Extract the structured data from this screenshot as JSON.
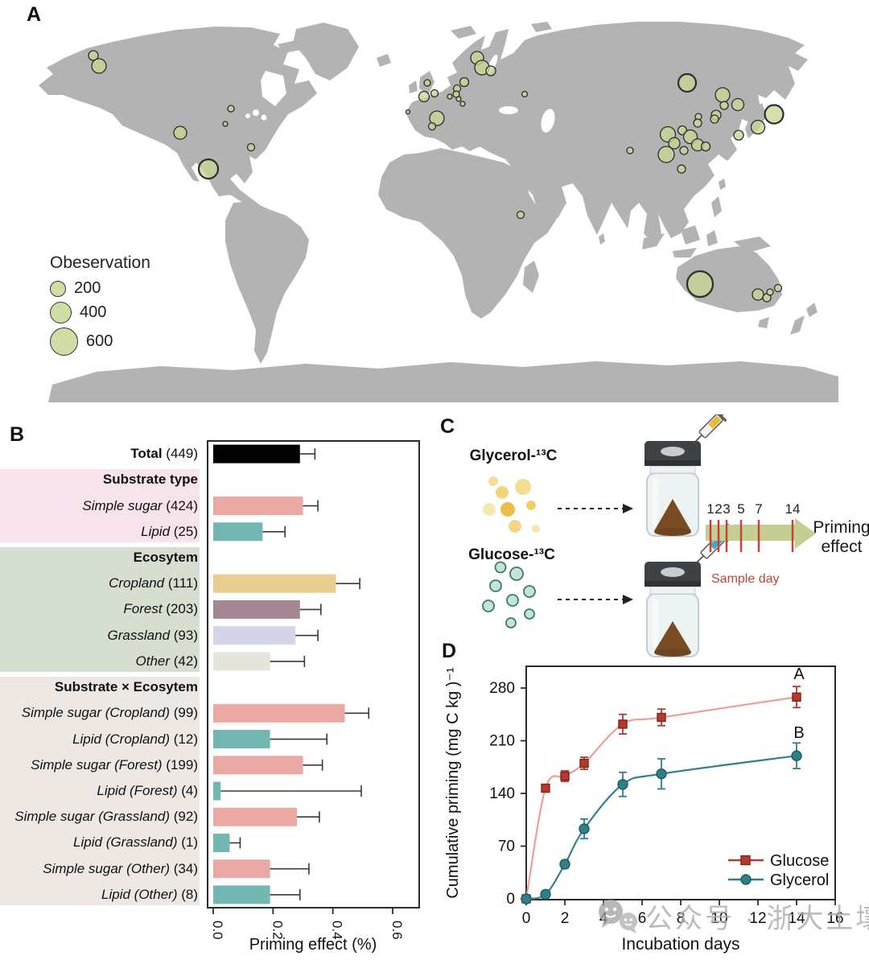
{
  "panels": {
    "a": {
      "label": "A",
      "legend": {
        "title": "Obeservation",
        "items": [
          "200",
          "400",
          "600"
        ]
      },
      "map_color": "#b3b3b3",
      "bubble_fill": "#c5d795",
      "bubbles": [
        [
          116,
          69,
          6
        ],
        [
          123,
          82,
          9
        ],
        [
          224,
          165,
          8
        ],
        [
          287,
          135,
          4
        ],
        [
          280,
          154,
          3
        ],
        [
          259,
          210,
          12
        ],
        [
          312,
          183,
          4.5
        ],
        [
          531,
          103,
          4
        ],
        [
          540,
          116,
          4.5
        ],
        [
          527,
          120,
          6.5
        ],
        [
          507,
          139,
          2.5
        ],
        [
          593,
          72,
          8
        ],
        [
          599,
          84,
          9
        ],
        [
          610,
          88,
          6
        ],
        [
          577,
          102,
          5.5
        ],
        [
          568,
          110,
          4.5
        ],
        [
          567,
          117,
          4
        ],
        [
          570,
          123,
          3
        ],
        [
          575,
          129,
          3
        ],
        [
          559,
          120,
          3
        ],
        [
          652,
          117,
          3.5
        ],
        [
          543,
          147,
          9
        ],
        [
          537,
          157,
          4.5
        ],
        [
          647,
          267,
          4.5
        ],
        [
          854,
          103,
          11
        ],
        [
          898,
          118,
          9
        ],
        [
          917,
          130,
          7.5
        ],
        [
          900,
          131,
          5
        ],
        [
          890,
          143,
          6
        ],
        [
          888,
          148,
          5
        ],
        [
          868,
          145,
          4
        ],
        [
          867,
          153,
          5
        ],
        [
          848,
          162,
          5.5
        ],
        [
          858,
          170,
          8.5
        ],
        [
          830,
          167,
          9.5
        ],
        [
          838,
          178,
          7
        ],
        [
          850,
          187,
          5
        ],
        [
          867,
          180,
          7.5
        ],
        [
          877,
          182,
          5.5
        ],
        [
          828,
          192,
          10
        ],
        [
          847,
          210,
          5
        ],
        [
          783,
          187,
          4
        ],
        [
          962,
          142,
          11.5
        ],
        [
          942,
          158,
          8.5
        ],
        [
          918,
          168,
          6
        ],
        [
          870,
          353,
          16
        ],
        [
          942,
          366,
          7
        ],
        [
          953,
          370,
          5
        ],
        [
          957,
          363,
          4
        ],
        [
          967,
          358,
          4.5
        ]
      ]
    },
    "b": {
      "label": "B"
    },
    "c": {
      "label": "C",
      "substrate_top": "Glycerol-¹³C",
      "substrate_bottom": "Glucose-¹³C",
      "sample_days": [
        "1",
        "2",
        "3",
        "5",
        "7",
        "14"
      ],
      "sample_day_label": "Sample day",
      "arrow_label_line1": "Priming",
      "arrow_label_line2": "effect"
    },
    "d": {
      "label": "D"
    }
  },
  "watermark": {
    "text": "公众号 · 浙大土壤"
  },
  "chart_data": [
    {
      "id": "panel-b-bars",
      "type": "bar",
      "orientation": "horizontal",
      "xlabel": "Priming effect (%)",
      "xlim": [
        0,
        0.6
      ],
      "x_ticks": [
        "0.0",
        "0.2",
        "0.4",
        "0.6"
      ],
      "group_blocks": [
        {
          "from": 1,
          "to": 3,
          "color": "#f7e3eb"
        },
        {
          "from": 4,
          "to": 8,
          "color": "#d6decf"
        },
        {
          "from": 9,
          "to": 17,
          "color": "#ede8e4"
        }
      ],
      "rows": [
        {
          "kind": "bar",
          "label": "Total",
          "count": 449,
          "bold": true,
          "value": 0.29,
          "error_high": 0.34,
          "color": "#000000"
        },
        {
          "kind": "header",
          "label": "Substrate type"
        },
        {
          "kind": "bar",
          "label": "Simple sugar",
          "count": 424,
          "value": 0.3,
          "error_high": 0.35,
          "color": "#eaa9a4"
        },
        {
          "kind": "bar",
          "label": "Lipid",
          "count": 25,
          "value": 0.165,
          "error_high": 0.24,
          "color": "#72b7b1"
        },
        {
          "kind": "header",
          "label": "Ecosytem"
        },
        {
          "kind": "bar",
          "label": "Cropland",
          "count": 111,
          "value": 0.41,
          "error_high": 0.49,
          "color": "#e8cf90"
        },
        {
          "kind": "bar",
          "label": "Forest",
          "count": 203,
          "value": 0.29,
          "error_high": 0.36,
          "color": "#a58793"
        },
        {
          "kind": "bar",
          "label": "Grassland",
          "count": 93,
          "value": 0.275,
          "error_high": 0.35,
          "color": "#d4d5e9"
        },
        {
          "kind": "bar",
          "label": "Other",
          "count": 42,
          "value": 0.19,
          "error_high": 0.305,
          "color": "#e7e4dc"
        },
        {
          "kind": "header",
          "label": "Substrate × Ecosytem"
        },
        {
          "kind": "bar",
          "label": "Simple sugar (Cropland)",
          "count": 99,
          "value": 0.44,
          "error_high": 0.52,
          "color": "#eaa9a4"
        },
        {
          "kind": "bar",
          "label": "Lipid (Cropland)",
          "count": 12,
          "value": 0.19,
          "error_high": 0.38,
          "color": "#72b7b1"
        },
        {
          "kind": "bar",
          "label": "Simple sugar (Forest)",
          "count": 199,
          "value": 0.3,
          "error_high": 0.365,
          "color": "#eaa9a4"
        },
        {
          "kind": "bar",
          "label": "Lipid (Forest)",
          "count": 4,
          "value": 0.025,
          "error_high": 0.495,
          "color": "#72b7b1"
        },
        {
          "kind": "bar",
          "label": "Simple sugar (Grassland)",
          "count": 92,
          "value": 0.28,
          "error_high": 0.355,
          "color": "#eaa9a4"
        },
        {
          "kind": "bar",
          "label": "Lipid (Grassland)",
          "count": 1,
          "value": 0.055,
          "error_high": 0.09,
          "color": "#72b7b1"
        },
        {
          "kind": "bar",
          "label": "Simple sugar (Other)",
          "count": 34,
          "value": 0.19,
          "error_high": 0.32,
          "color": "#eaa9a4"
        },
        {
          "kind": "bar",
          "label": "Lipid (Other)",
          "count": 8,
          "value": 0.19,
          "error_high": 0.29,
          "color": "#72b7b1"
        }
      ]
    },
    {
      "id": "panel-d-lines",
      "type": "line",
      "xlabel": "Incubation days",
      "ylabel": "Cumulative priming (mg C kg )⁻¹",
      "xlim": [
        0,
        16
      ],
      "ylim": [
        0,
        300
      ],
      "x_ticks": [
        0,
        2,
        4,
        6,
        8,
        10,
        12,
        14,
        16
      ],
      "y_ticks": [
        0,
        70,
        140,
        210,
        280
      ],
      "legend_position": "bottom-right",
      "series": [
        {
          "name": "Glucose",
          "letter": "A",
          "marker": "square",
          "color": "#b23a2e",
          "marker_stroke": "#7e2418",
          "line_color": "#ef9e96",
          "x": [
            0,
            1,
            2,
            3,
            5,
            7,
            14
          ],
          "y": [
            0,
            147,
            163,
            180,
            232,
            241,
            268
          ],
          "yerr": [
            0,
            0,
            7,
            8,
            13,
            11,
            14
          ]
        },
        {
          "name": "Glycerol",
          "letter": "B",
          "marker": "circle",
          "color": "#2e7f87",
          "marker_stroke": "#1d5b62",
          "line_color": "#2f828a",
          "x": [
            0,
            1,
            2,
            3,
            5,
            7,
            14
          ],
          "y": [
            0,
            6,
            46,
            93,
            152,
            166,
            190
          ],
          "yerr": [
            0,
            0,
            5,
            13,
            16,
            20,
            17
          ]
        }
      ]
    },
    {
      "id": "panel-a-map",
      "type": "scatter",
      "title": "Obeservation",
      "legend_sizes": [
        200,
        400,
        600
      ]
    }
  ]
}
